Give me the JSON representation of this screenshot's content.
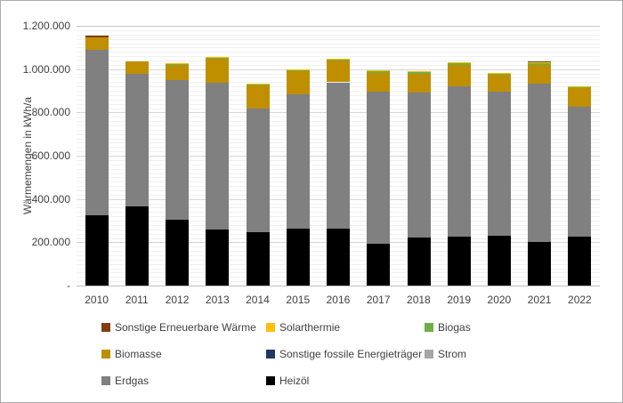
{
  "chart_data": {
    "type": "bar",
    "stacked": true,
    "title": "",
    "xlabel": "",
    "ylabel": "Wärmemengen in kWh/a",
    "unit": "kWh/a",
    "ylim": [
      0,
      1200000
    ],
    "y_major_step": 200000,
    "y_minor_step": 20000,
    "y_tick_labels": [
      "-",
      "200.000",
      "400.000",
      "600.000",
      "800.000",
      "1.000.000",
      "1.200.000"
    ],
    "grid": true,
    "legend_position": "bottom",
    "categories": [
      "2010",
      "2011",
      "2012",
      "2013",
      "2014",
      "2015",
      "2016",
      "2017",
      "2018",
      "2019",
      "2020",
      "2021",
      "2022"
    ],
    "series": [
      {
        "name": "Heizöl",
        "color": "#000000",
        "values": [
          325000,
          365000,
          305000,
          260000,
          245000,
          265000,
          265000,
          195000,
          220000,
          225000,
          230000,
          200000,
          228000
        ]
      },
      {
        "name": "Erdgas",
        "color": "#808080",
        "values": [
          765000,
          614000,
          644000,
          675000,
          573000,
          618000,
          674000,
          699000,
          670000,
          696000,
          664000,
          731000,
          598000
        ]
      },
      {
        "name": "Strom",
        "color": "#a6a6a6",
        "values": [
          0,
          0,
          0,
          0,
          0,
          0,
          0,
          0,
          0,
          0,
          0,
          0,
          0
        ]
      },
      {
        "name": "Sonstige fossile Energieträger",
        "color": "#1f3864",
        "values": [
          0,
          0,
          0,
          0,
          0,
          0,
          0,
          0,
          0,
          0,
          0,
          0,
          0
        ]
      },
      {
        "name": "Biomasse",
        "color": "#bf8f00",
        "values": [
          57000,
          58000,
          72000,
          113000,
          105000,
          107000,
          99000,
          90000,
          90000,
          100000,
          80000,
          90000,
          86000
        ]
      },
      {
        "name": "Biogas",
        "color": "#70ad47",
        "values": [
          0,
          0,
          5000,
          6000,
          6000,
          6000,
          6000,
          6000,
          6000,
          6000,
          6000,
          6000,
          6000
        ]
      },
      {
        "name": "Solarthermie",
        "color": "#ffc000",
        "values": [
          0,
          0,
          2000,
          4000,
          4000,
          4000,
          4000,
          4000,
          4000,
          4000,
          4000,
          4000,
          4000
        ]
      },
      {
        "name": "Sonstige Erneuerbare Wärme",
        "color": "#843c0c",
        "values": [
          8000,
          0,
          0,
          0,
          0,
          0,
          0,
          0,
          0,
          0,
          0,
          3000,
          0
        ]
      }
    ],
    "legend_items": [
      "Sonstige Erneuerbare Wärme",
      "Solarthermie",
      "Biogas",
      "Biomasse",
      "Sonstige fossile Energieträger",
      "Strom",
      "Erdgas",
      "Heizöl"
    ],
    "totals": [
      1155000,
      1037000,
      1028000,
      1058000,
      933000,
      1000000,
      1048000,
      994000,
      990000,
      1031000,
      984000,
      1034000,
      922000
    ]
  }
}
